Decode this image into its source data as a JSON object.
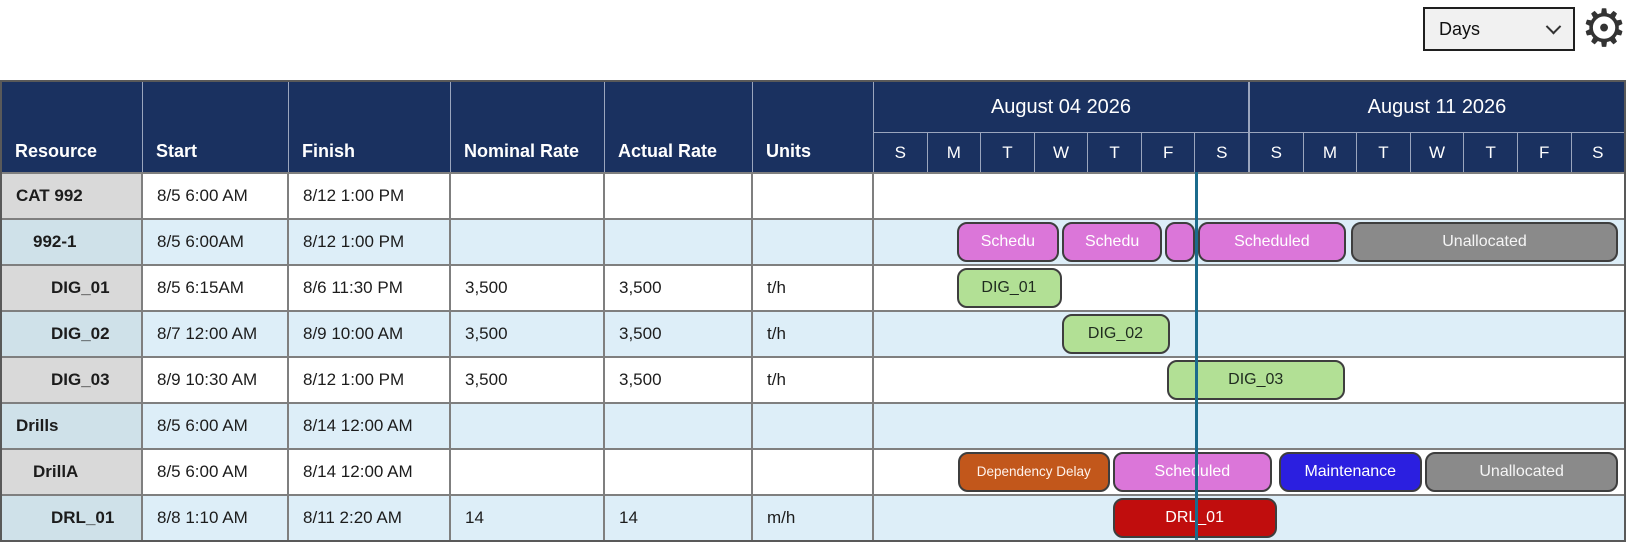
{
  "controls": {
    "time_scale": "Days",
    "settings_icon": "gear"
  },
  "colors": {
    "ui": {
      "header_bg": "#1A3160",
      "header_grid": "#9AA5BD",
      "row_alt": "#DDEEF8",
      "resource_odd": "#D9D9D9",
      "resource_even": "#CFE1E9",
      "grid": "#7F7F7F",
      "outer": "#595959",
      "now_line": "#1B6B8C"
    },
    "bars": {
      "pink": {
        "bg": "#DB76D9",
        "text": "#FFFFFF"
      },
      "green": {
        "bg": "#B2E095",
        "text": "#1F2B1F"
      },
      "orange": {
        "bg": "#C2571B",
        "text": "#FFF3EC"
      },
      "blue": {
        "bg": "#2B1FE0",
        "text": "#FFFFFF"
      },
      "gray": {
        "bg": "#8A8A8A",
        "text": "#F5F5F5"
      },
      "red": {
        "bg": "#C00D0D",
        "text": "#FFFFFF"
      }
    }
  },
  "table": {
    "columns": [
      "Resource",
      "Start",
      "Finish",
      "Nominal Rate",
      "Actual Rate",
      "Units"
    ],
    "weeks": [
      "August 04 2026",
      "August 11 2026"
    ],
    "day_letters": [
      "S",
      "M",
      "T",
      "W",
      "T",
      "F",
      "S",
      "S",
      "M",
      "T",
      "W",
      "T",
      "F",
      "S"
    ],
    "now_line_pct": 42.8,
    "rows": [
      {
        "resource": "CAT 992",
        "indent": 0,
        "start": "8/5 6:00 AM",
        "finish": "8/12 1:00 PM",
        "nominal_rate": "",
        "actual_rate": "",
        "units": "",
        "bars": []
      },
      {
        "resource": "992-1",
        "indent": 1,
        "start": "8/5 6:00AM",
        "finish": "8/12 1:00 PM",
        "nominal_rate": "",
        "actual_rate": "",
        "units": "",
        "bars": [
          {
            "label": "Schedu",
            "color": "pink",
            "left_pct": 11.0,
            "width_pct": 13.7
          },
          {
            "label": "Schedu",
            "color": "pink",
            "left_pct": 25.1,
            "width_pct": 13.3
          },
          {
            "label": "",
            "color": "pink",
            "left_pct": 38.8,
            "width_pct": 4.0
          },
          {
            "label": "Scheduled",
            "color": "pink",
            "left_pct": 43.2,
            "width_pct": 19.7
          },
          {
            "label": "Unallocated",
            "color": "gray",
            "left_pct": 63.6,
            "width_pct": 35.6
          }
        ]
      },
      {
        "resource": "DIG_01",
        "indent": 2,
        "start": "8/5 6:15AM",
        "finish": "8/6 11:30 PM",
        "nominal_rate": "3,500",
        "actual_rate": "3,500",
        "units": "t/h",
        "bars": [
          {
            "label": "DIG_01",
            "color": "green",
            "left_pct": 11.0,
            "width_pct": 14.0
          }
        ]
      },
      {
        "resource": "DIG_02",
        "indent": 2,
        "start": "8/7 12:00 AM",
        "finish": "8/9 10:00 AM",
        "nominal_rate": "3,500",
        "actual_rate": "3,500",
        "units": "t/h",
        "bars": [
          {
            "label": "DIG_02",
            "color": "green",
            "left_pct": 25.0,
            "width_pct": 14.4
          }
        ]
      },
      {
        "resource": "DIG_03",
        "indent": 2,
        "start": "8/9 10:30 AM",
        "finish": "8/12 1:00 PM",
        "nominal_rate": "3,500",
        "actual_rate": "3,500",
        "units": "t/h",
        "bars": [
          {
            "label": "DIG_03",
            "color": "green",
            "left_pct": 39.0,
            "width_pct": 23.8
          }
        ]
      },
      {
        "resource": "Drills",
        "indent": 0,
        "start": "8/5 6:00 AM",
        "finish": "8/14 12:00 AM",
        "nominal_rate": "",
        "actual_rate": "",
        "units": "",
        "bars": []
      },
      {
        "resource": "DrillA",
        "indent": 1,
        "start": "8/5 6:00 AM",
        "finish": "8/14 12:00 AM",
        "nominal_rate": "",
        "actual_rate": "",
        "units": "",
        "bars": [
          {
            "label": "Dependency Delay",
            "color": "orange",
            "left_pct": 11.2,
            "width_pct": 20.2,
            "small_text": true
          },
          {
            "label": "Scheduled",
            "color": "pink",
            "left_pct": 31.8,
            "width_pct": 21.3
          },
          {
            "label": "Maintenance",
            "color": "blue",
            "left_pct": 54.0,
            "width_pct": 19.0
          },
          {
            "label": "Unallocated",
            "color": "gray",
            "left_pct": 73.5,
            "width_pct": 25.7
          }
        ]
      },
      {
        "resource": "DRL_01",
        "indent": 2,
        "start": "8/8 1:10 AM",
        "finish": "8/11 2:20 AM",
        "nominal_rate": "14",
        "actual_rate": "14",
        "units": "m/h",
        "bars": [
          {
            "label": "DRL_01",
            "color": "red",
            "left_pct": 31.8,
            "width_pct": 21.9
          }
        ]
      }
    ]
  }
}
